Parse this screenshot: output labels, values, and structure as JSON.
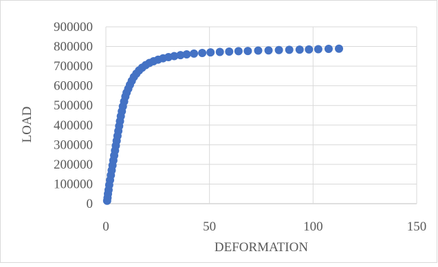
{
  "chart_data": {
    "type": "scatter",
    "title": "",
    "xlabel": "DEFORMATION",
    "ylabel": "LOAD",
    "xlim": [
      0,
      150
    ],
    "ylim": [
      0,
      900000
    ],
    "x_ticks": [
      0,
      50,
      100,
      150
    ],
    "y_ticks": [
      0,
      100000,
      200000,
      300000,
      400000,
      500000,
      600000,
      700000,
      800000,
      900000
    ],
    "x_tick_labels": [
      "0",
      "50",
      "100",
      "150"
    ],
    "y_tick_labels": [
      "0",
      "100000",
      "200000",
      "300000",
      "400000",
      "500000",
      "600000",
      "700000",
      "800000",
      "900000"
    ],
    "grid": true,
    "legend": "none",
    "marker_color": "#4472C4",
    "series": [
      {
        "points": [
          [
            0.6,
            15000
          ],
          [
            0.8,
            30000
          ],
          [
            1.0,
            50000
          ],
          [
            1.3,
            70000
          ],
          [
            1.6,
            95000
          ],
          [
            2.0,
            120000
          ],
          [
            2.4,
            145000
          ],
          [
            2.8,
            170000
          ],
          [
            3.2,
            195000
          ],
          [
            3.6,
            220000
          ],
          [
            4.0,
            245000
          ],
          [
            4.4,
            270000
          ],
          [
            4.8,
            295000
          ],
          [
            5.2,
            320000
          ],
          [
            5.6,
            345000
          ],
          [
            6.0,
            370000
          ],
          [
            6.4,
            395000
          ],
          [
            6.8,
            420000
          ],
          [
            7.2,
            445000
          ],
          [
            7.7,
            470000
          ],
          [
            8.2,
            495000
          ],
          [
            8.8,
            520000
          ],
          [
            9.4,
            545000
          ],
          [
            10.0,
            565000
          ],
          [
            10.8,
            585000
          ],
          [
            11.6,
            605000
          ],
          [
            12.5,
            625000
          ],
          [
            13.5,
            645000
          ],
          [
            14.7,
            662000
          ],
          [
            16.0,
            678000
          ],
          [
            17.5,
            692000
          ],
          [
            19.2,
            705000
          ],
          [
            21.0,
            716000
          ],
          [
            23.0,
            725000
          ],
          [
            25.2,
            733000
          ],
          [
            27.6,
            740000
          ],
          [
            30.2,
            746000
          ],
          [
            33.0,
            751000
          ],
          [
            36.0,
            756000
          ],
          [
            39.0,
            760000
          ],
          [
            42.5,
            764000
          ],
          [
            46.5,
            767000
          ],
          [
            50.5,
            770000
          ],
          [
            55.0,
            772000
          ],
          [
            59.5,
            774000
          ],
          [
            64.0,
            776000
          ],
          [
            68.5,
            777000
          ],
          [
            73.5,
            779000
          ],
          [
            78.5,
            780000
          ],
          [
            83.5,
            782000
          ],
          [
            88.5,
            783000
          ],
          [
            93.5,
            784000
          ],
          [
            98.0,
            785000
          ],
          [
            102.5,
            786000
          ],
          [
            107.5,
            788000
          ],
          [
            112.5,
            789000
          ]
        ]
      }
    ]
  }
}
